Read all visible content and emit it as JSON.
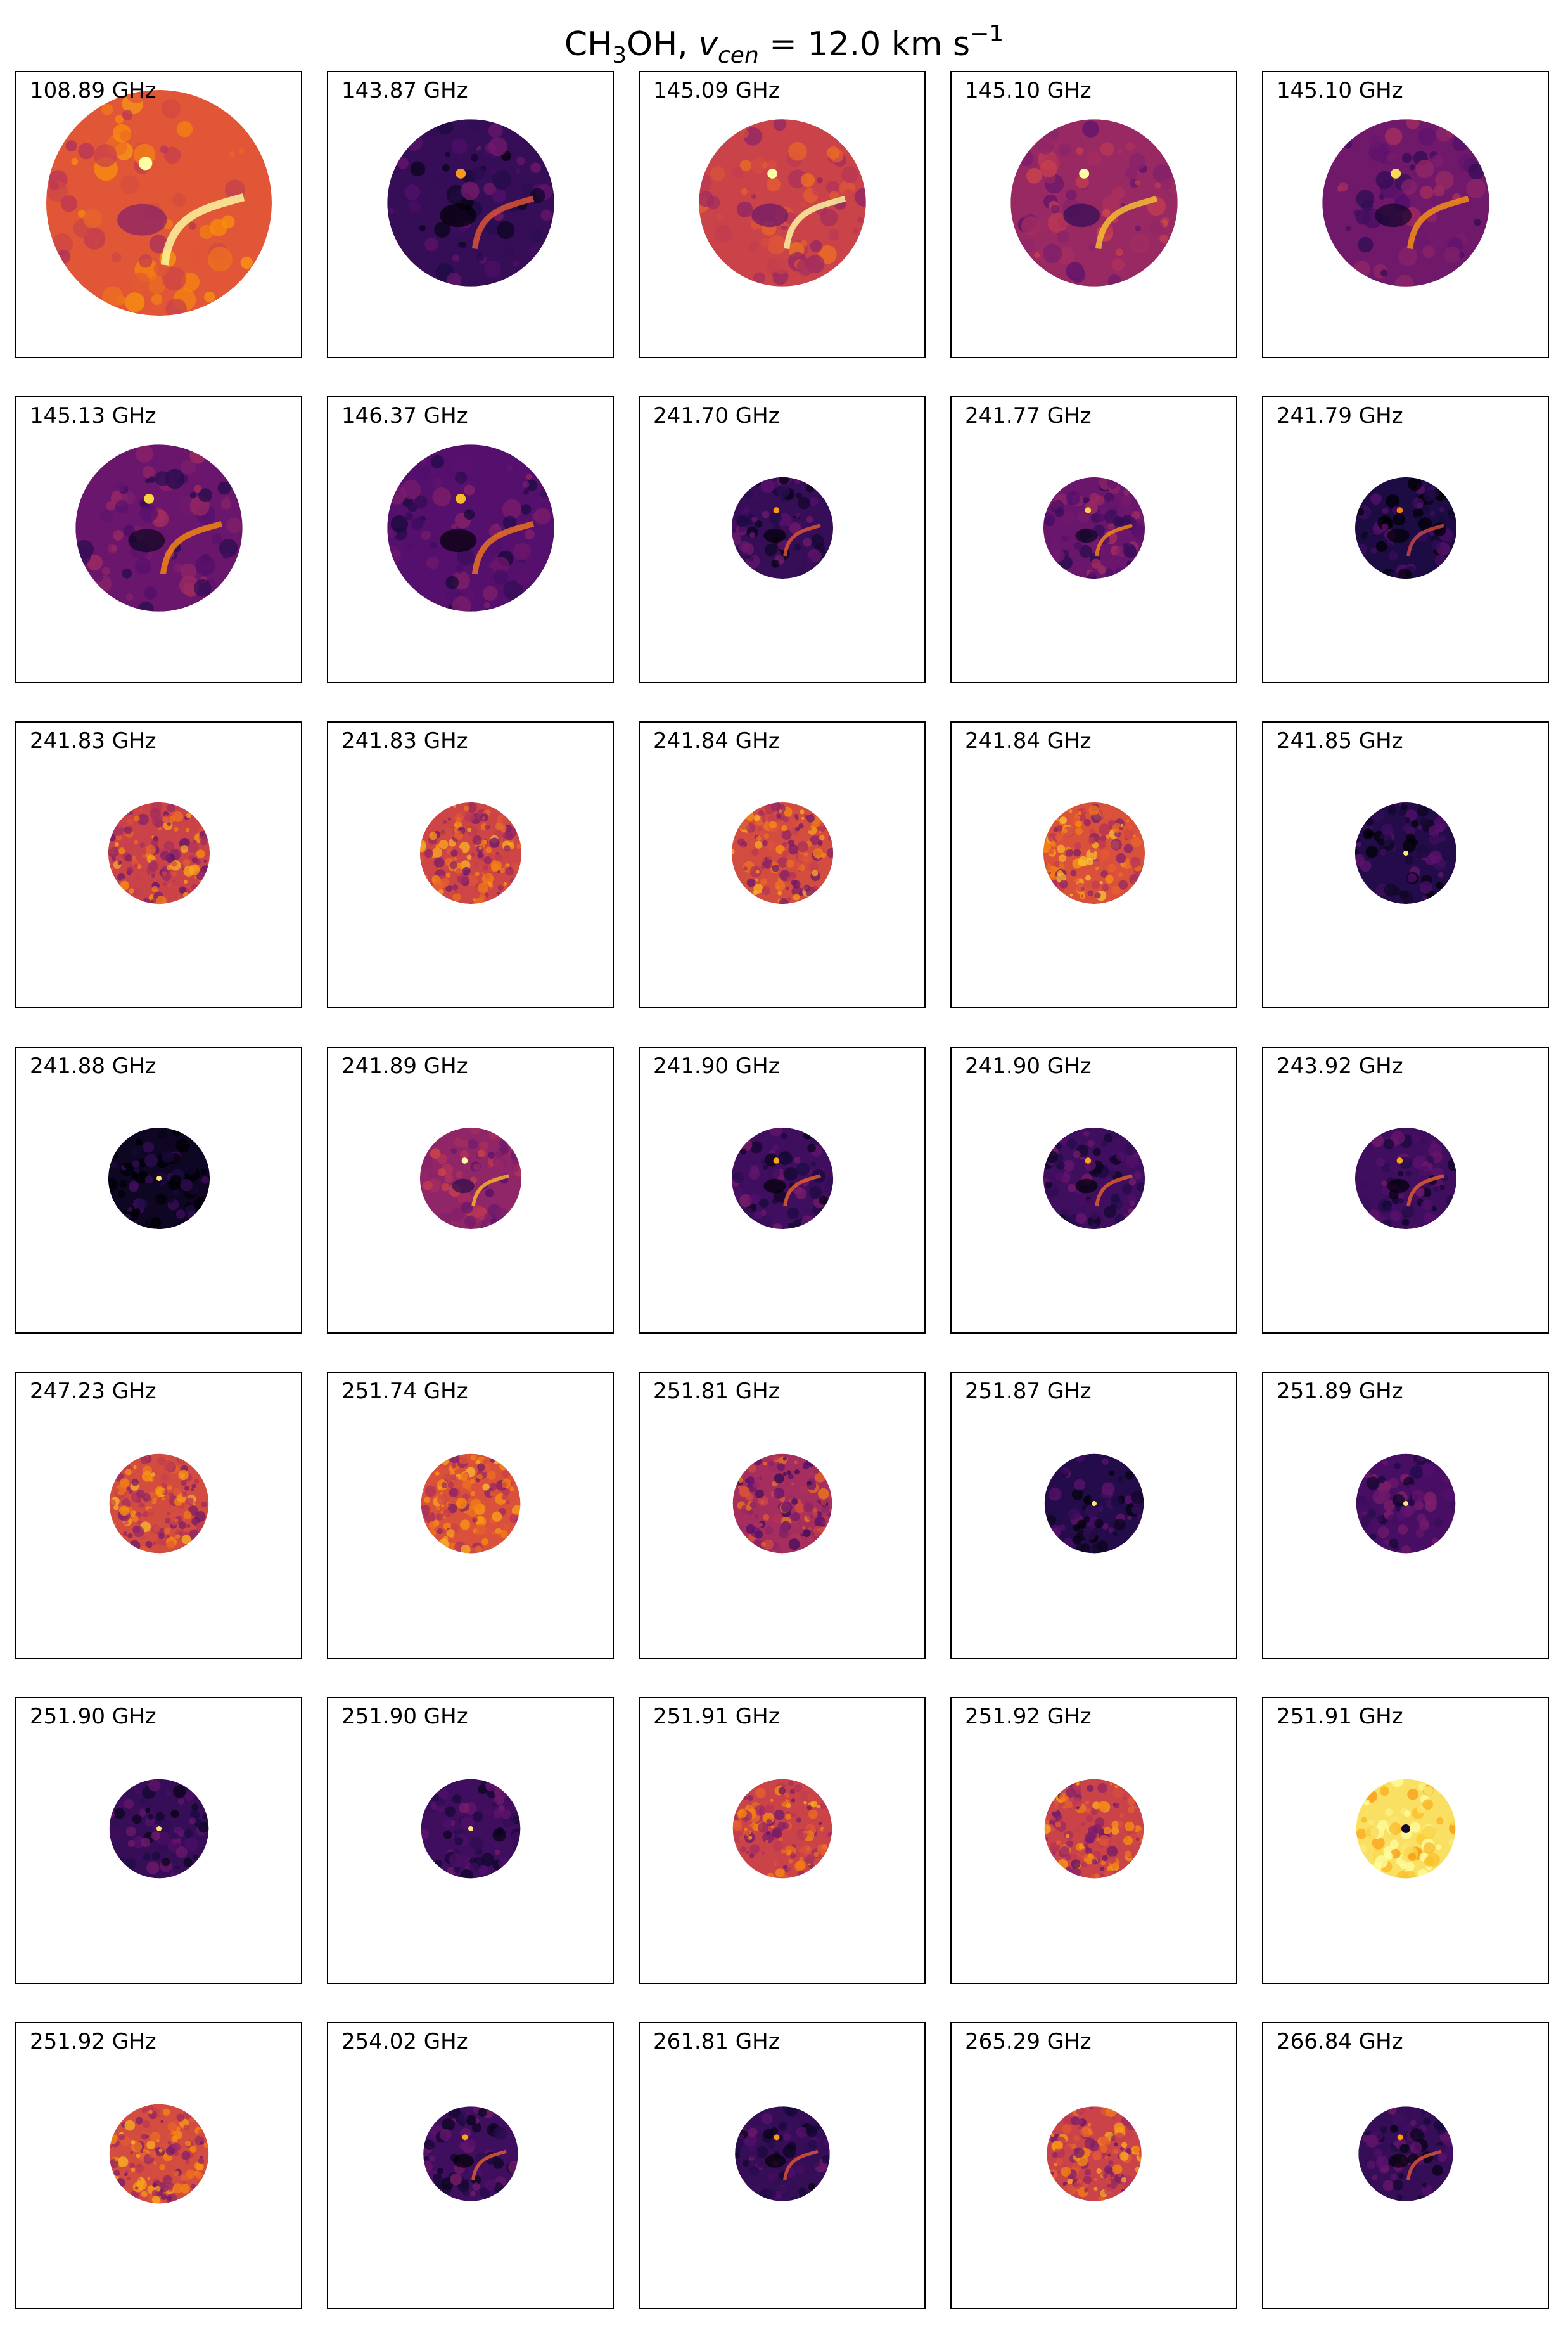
{
  "title": {
    "prefix": "CH",
    "prefix_sub": "3",
    "molecule_rest": "OH, ",
    "var": "v",
    "var_sub": "cen",
    "equals": " =  12.0 km s",
    "unit_sup": "−1"
  },
  "colormap": "inferno",
  "chart_data": {
    "type": "heatmap",
    "layout": "grid 7 rows x 5 columns",
    "panels": [
      {
        "label": "108.89 GHz",
        "size": 1.0,
        "level": 0.62,
        "texture": "filament"
      },
      {
        "label": "143.87 GHz",
        "size": 0.74,
        "level": 0.18,
        "texture": "filament"
      },
      {
        "label": "145.09 GHz",
        "size": 0.74,
        "level": 0.55,
        "texture": "filament"
      },
      {
        "label": "145.10 GHz",
        "size": 0.74,
        "level": 0.42,
        "texture": "filament"
      },
      {
        "label": "145.10 GHz",
        "size": 0.74,
        "level": 0.32,
        "texture": "filament"
      },
      {
        "label": "145.13 GHz",
        "size": 0.74,
        "level": 0.3,
        "texture": "filament"
      },
      {
        "label": "146.37 GHz",
        "size": 0.74,
        "level": 0.25,
        "texture": "filament"
      },
      {
        "label": "241.70 GHz",
        "size": 0.45,
        "level": 0.18,
        "texture": "filament"
      },
      {
        "label": "241.77 GHz",
        "size": 0.45,
        "level": 0.3,
        "texture": "filament"
      },
      {
        "label": "241.79 GHz",
        "size": 0.45,
        "level": 0.12,
        "texture": "filament"
      },
      {
        "label": "241.83 GHz",
        "size": 0.45,
        "level": 0.55,
        "texture": "noise"
      },
      {
        "label": "241.83 GHz",
        "size": 0.45,
        "level": 0.56,
        "texture": "noise"
      },
      {
        "label": "241.84 GHz",
        "size": 0.45,
        "level": 0.58,
        "texture": "noise"
      },
      {
        "label": "241.84 GHz",
        "size": 0.45,
        "level": 0.6,
        "texture": "noise"
      },
      {
        "label": "241.85 GHz",
        "size": 0.45,
        "level": 0.14,
        "texture": "point"
      },
      {
        "label": "241.88 GHz",
        "size": 0.45,
        "level": 0.06,
        "texture": "point"
      },
      {
        "label": "241.89 GHz",
        "size": 0.45,
        "level": 0.4,
        "texture": "filament"
      },
      {
        "label": "241.90 GHz",
        "size": 0.45,
        "level": 0.2,
        "texture": "filament"
      },
      {
        "label": "241.90 GHz",
        "size": 0.45,
        "level": 0.2,
        "texture": "filament"
      },
      {
        "label": "243.92 GHz",
        "size": 0.45,
        "level": 0.2,
        "texture": "filament"
      },
      {
        "label": "247.23 GHz",
        "size": 0.44,
        "level": 0.58,
        "texture": "noise"
      },
      {
        "label": "251.74 GHz",
        "size": 0.44,
        "level": 0.6,
        "texture": "noise"
      },
      {
        "label": "251.81 GHz",
        "size": 0.44,
        "level": 0.45,
        "texture": "noise"
      },
      {
        "label": "251.87 GHz",
        "size": 0.44,
        "level": 0.14,
        "texture": "point"
      },
      {
        "label": "251.89 GHz",
        "size": 0.44,
        "level": 0.22,
        "texture": "point"
      },
      {
        "label": "251.90 GHz",
        "size": 0.44,
        "level": 0.18,
        "texture": "point"
      },
      {
        "label": "251.90 GHz",
        "size": 0.44,
        "level": 0.2,
        "texture": "point"
      },
      {
        "label": "251.91 GHz",
        "size": 0.44,
        "level": 0.55,
        "texture": "noise"
      },
      {
        "label": "251.92 GHz",
        "size": 0.44,
        "level": 0.55,
        "texture": "noise"
      },
      {
        "label": "251.91 GHz",
        "size": 0.44,
        "level": 0.93,
        "texture": "dark-point"
      },
      {
        "label": "251.92 GHz",
        "size": 0.44,
        "level": 0.58,
        "texture": "noise"
      },
      {
        "label": "254.02 GHz",
        "size": 0.42,
        "level": 0.2,
        "texture": "filament"
      },
      {
        "label": "261.81 GHz",
        "size": 0.42,
        "level": 0.18,
        "texture": "filament"
      },
      {
        "label": "265.29 GHz",
        "size": 0.42,
        "level": 0.55,
        "texture": "noise"
      },
      {
        "label": "266.84 GHz",
        "size": 0.42,
        "level": 0.18,
        "texture": "filament"
      }
    ]
  }
}
